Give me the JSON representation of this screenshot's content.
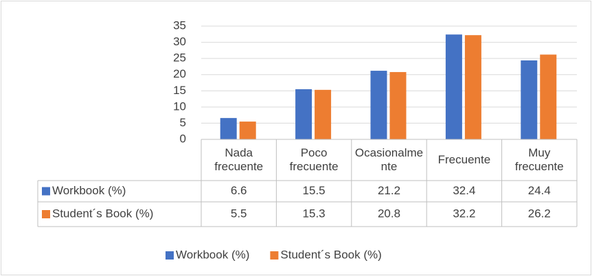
{
  "chart_data": {
    "type": "bar",
    "categories": [
      "Nada frecuente",
      "Poco frecuente",
      "Ocasionalmente",
      "Frecuente",
      "Muy frecuente"
    ],
    "series": [
      {
        "name": "Workbook (%)",
        "color": "#4472c4",
        "values": [
          6.6,
          15.5,
          21.2,
          32.4,
          24.4
        ]
      },
      {
        "name": "Student´s Book (%)",
        "color": "#ed7d31",
        "values": [
          5.5,
          15.3,
          20.8,
          32.2,
          26.2
        ]
      }
    ],
    "ylim": [
      0,
      35
    ],
    "yticks": [
      0,
      5,
      10,
      15,
      20,
      25,
      30,
      35
    ],
    "grid": true,
    "legend": "bottom",
    "data_table": true
  }
}
